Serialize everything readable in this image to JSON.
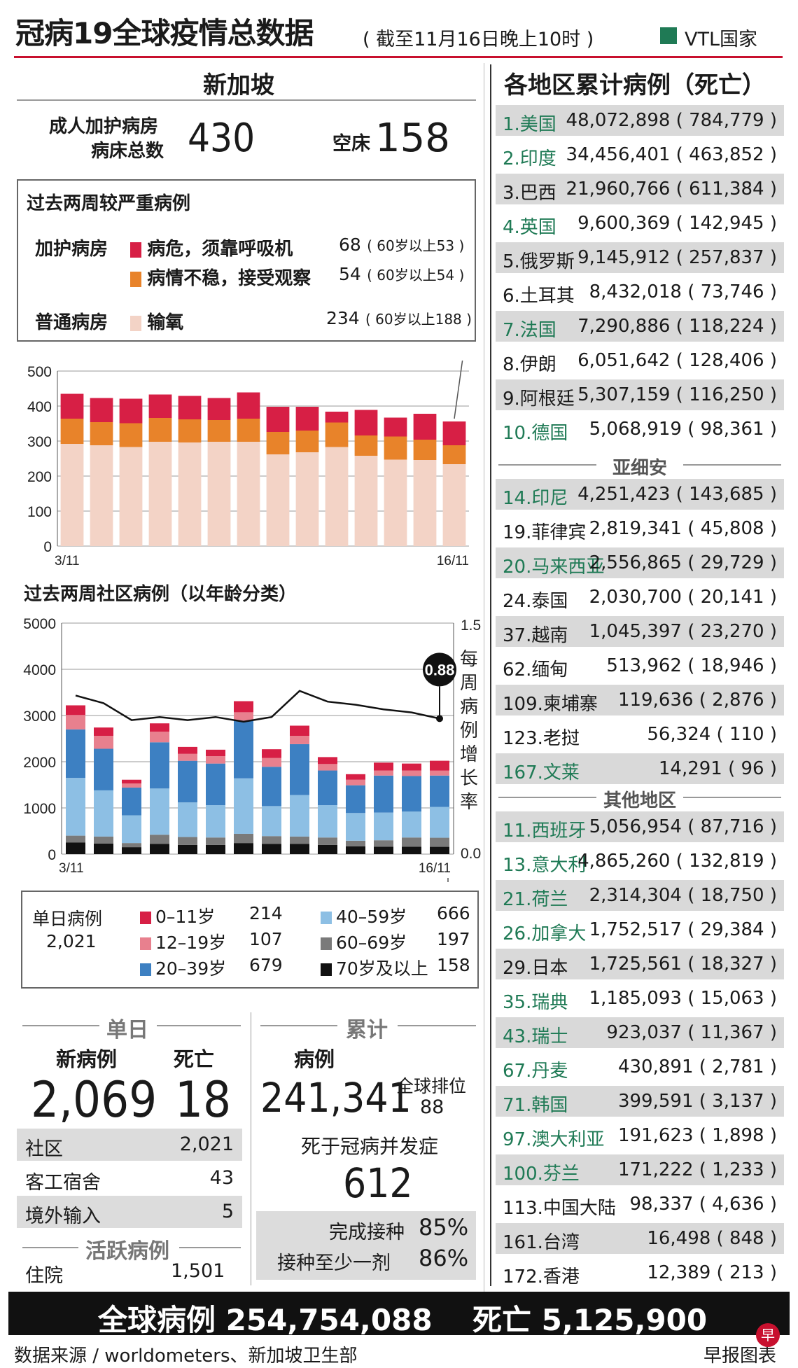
{
  "header": {
    "title": "冠病19全球疫情总数据",
    "subtitle": "( 截至11月16日晚上10时 )",
    "vtl_label": "VTL国家",
    "vtl_color": "#1f7a55"
  },
  "singapore": {
    "title": "新加坡",
    "icu_label_1": "成人加护病房",
    "icu_label_2": "病床总数",
    "icu_total": "430",
    "free_label": "空床",
    "free_beds": "158",
    "severe": {
      "title": "过去两周较严重病例",
      "icu_label": "加护病房",
      "ward_label": "普通病房",
      "rows": [
        {
          "label": "病危，须靠呼吸机",
          "value": "68",
          "note": "( 60岁以上53 )",
          "color": "#d71f45"
        },
        {
          "label": "病情不稳，接受观察",
          "value": "54",
          "note": "( 60岁以上54 )",
          "color": "#e8832a"
        },
        {
          "label": "输氧",
          "value": "234",
          "note": "( 60岁以上188 )",
          "color": "#f3d3c6"
        }
      ]
    },
    "age_chart_title": "过去两周社区病例（以年龄分类）",
    "legend": {
      "daily_label": "单日病例",
      "daily_value": "2,021",
      "items": [
        {
          "label": "0–11岁",
          "value": "214",
          "color": "#d71f45"
        },
        {
          "label": "12–19岁",
          "value": "107",
          "color": "#e8808e"
        },
        {
          "label": "20–39岁",
          "value": "679",
          "color": "#3d80c2"
        },
        {
          "label": "40–59岁",
          "value": "666",
          "color": "#8dbfe4"
        },
        {
          "label": "60–69岁",
          "value": "197",
          "color": "#7a7a7a"
        },
        {
          "label": "70岁及以上",
          "value": "158",
          "color": "#111111"
        }
      ]
    },
    "daily": {
      "header": "单日",
      "new_cases_label": "新病例",
      "deaths_label": "死亡",
      "new_cases": "2,069",
      "deaths": "18",
      "rows": [
        {
          "label": "社区",
          "value": "2,021"
        },
        {
          "label": "客工宿舍",
          "value": "43"
        },
        {
          "label": "境外输入",
          "value": "5"
        }
      ],
      "active_header": "活跃病例",
      "hospital_label": "住院",
      "hospital_value": "1,501"
    },
    "cumulative": {
      "header": "累计",
      "cases_label": "病例",
      "cases": "241,341",
      "rank_label": "全球排位",
      "rank": "88",
      "death_label": "死于冠病并发症",
      "deaths": "612",
      "vacc_full_label": "完成接种",
      "vacc_full": "85%",
      "vacc_one_label": "接种至少一剂",
      "vacc_one": "86%"
    }
  },
  "regions": {
    "title": "各地区累计病例（死亡）",
    "top": [
      {
        "name": "1.美国",
        "value": "48,072,898 ( 784,779 )",
        "vtl": true
      },
      {
        "name": "2.印度",
        "value": "34,456,401 ( 463,852 )",
        "vtl": true
      },
      {
        "name": "3.巴西",
        "value": "21,960,766 ( 611,384 )",
        "vtl": false
      },
      {
        "name": "4.英国",
        "value": "9,600,369 ( 142,945 )",
        "vtl": true
      },
      {
        "name": "5.俄罗斯",
        "value": "9,145,912 ( 257,837 )",
        "vtl": false
      },
      {
        "name": "6.土耳其",
        "value": "8,432,018 ( 73,746 )",
        "vtl": false
      },
      {
        "name": "7.法国",
        "value": "7,290,886 ( 118,224 )",
        "vtl": true
      },
      {
        "name": "8.伊朗",
        "value": "6,051,642 ( 128,406 )",
        "vtl": false
      },
      {
        "name": "9.阿根廷",
        "value": "5,307,159 ( 116,250 )",
        "vtl": false
      },
      {
        "name": "10.德国",
        "value": "5,068,919 ( 98,361 )",
        "vtl": true
      }
    ],
    "asean_header": "亚细安",
    "asean": [
      {
        "name": "14.印尼",
        "value": "4,251,423 ( 143,685 )",
        "vtl": true
      },
      {
        "name": "19.菲律宾",
        "value": "2,819,341 ( 45,808 )",
        "vtl": false
      },
      {
        "name": "20.马来西亚",
        "value": "2,556,865 ( 29,729 )",
        "vtl": true
      },
      {
        "name": "24.泰国",
        "value": "2,030,700 ( 20,141 )",
        "vtl": false
      },
      {
        "name": "37.越南",
        "value": "1,045,397 ( 23,270 )",
        "vtl": false
      },
      {
        "name": "62.缅甸",
        "value": "513,962 ( 18,946 )",
        "vtl": false
      },
      {
        "name": "109.柬埔寨",
        "value": "119,636 ( 2,876 )",
        "vtl": false
      },
      {
        "name": "123.老挝",
        "value": "56,324 ( 110 )",
        "vtl": false
      },
      {
        "name": "167.文莱",
        "value": "14,291 ( 96 )",
        "vtl": true
      }
    ],
    "other_header": "其他地区",
    "other": [
      {
        "name": "11.西班牙",
        "value": "5,056,954 ( 87,716 )",
        "vtl": true
      },
      {
        "name": "13.意大利",
        "value": "4,865,260 ( 132,819 )",
        "vtl": true
      },
      {
        "name": "21.荷兰",
        "value": "2,314,304 ( 18,750 )",
        "vtl": true
      },
      {
        "name": "26.加拿大",
        "value": "1,752,517 ( 29,384 )",
        "vtl": true
      },
      {
        "name": "29.日本",
        "value": "1,725,561 ( 18,327 )",
        "vtl": false
      },
      {
        "name": "35.瑞典",
        "value": "1,185,093 ( 15,063 )",
        "vtl": true
      },
      {
        "name": "43.瑞士",
        "value": "923,037 ( 11,367 )",
        "vtl": true
      },
      {
        "name": "67.丹麦",
        "value": "430,891 ( 2,781 )",
        "vtl": true
      },
      {
        "name": "71.韩国",
        "value": "399,591 ( 3,137 )",
        "vtl": true
      },
      {
        "name": "97.澳大利亚",
        "value": "191,623 ( 1,898 )",
        "vtl": true
      },
      {
        "name": "100.芬兰",
        "value": "171,222 ( 1,233 )",
        "vtl": true
      },
      {
        "name": "113.中国大陆",
        "value": "98,337 ( 4,636 )",
        "vtl": false
      },
      {
        "name": "161.台湾",
        "value": "16,498 ( 848 )",
        "vtl": false
      },
      {
        "name": "172.香港",
        "value": "12,389 ( 213 )",
        "vtl": false
      }
    ]
  },
  "footer": {
    "global_cases": "全球病例 254,754,088",
    "global_deaths": "死亡 5,125,900",
    "source": "数据来源 / worldometers、新加坡卫生部",
    "credit": "早报图表",
    "logo": "早"
  },
  "chart_data": [
    {
      "type": "bar",
      "stacked": true,
      "x_start_label": "3/11",
      "x_end_label": "16/11",
      "ylim": [
        0,
        500
      ],
      "yticks": [
        0,
        100,
        200,
        300,
        400,
        500
      ],
      "grid": true,
      "series": [
        {
          "color": "#f3d3c6",
          "values": [
            292,
            288,
            283,
            298,
            296,
            298,
            298,
            262,
            268,
            283,
            258,
            247,
            246,
            234
          ]
        },
        {
          "color": "#e8832a",
          "values": [
            72,
            66,
            68,
            68,
            66,
            62,
            66,
            64,
            62,
            70,
            58,
            66,
            58,
            54
          ]
        },
        {
          "color": "#d71f45",
          "values": [
            71,
            69,
            70,
            67,
            67,
            63,
            75,
            72,
            68,
            31,
            73,
            54,
            74,
            68
          ]
        }
      ]
    },
    {
      "type": "bar",
      "stacked": true,
      "x_start_label": "3/11",
      "x_end_label": "16/11",
      "ylim": [
        0,
        5000
      ],
      "yticks": [
        0,
        1000,
        2000,
        3000,
        4000,
        5000
      ],
      "y2lim": [
        0,
        1.5
      ],
      "y2ticks": [
        "0.0",
        "1.5"
      ],
      "y2label": "每周病例增长率",
      "callout": "0.88",
      "grid": true,
      "series": [
        {
          "color": "#111111",
          "values": [
            250,
            230,
            150,
            220,
            200,
            200,
            240,
            220,
            220,
            200,
            170,
            160,
            160,
            158
          ]
        },
        {
          "color": "#7a7a7a",
          "values": [
            150,
            150,
            90,
            200,
            170,
            160,
            200,
            170,
            160,
            160,
            120,
            140,
            200,
            197
          ]
        },
        {
          "color": "#8dbfe4",
          "values": [
            1250,
            1000,
            600,
            1000,
            750,
            700,
            1200,
            650,
            900,
            700,
            600,
            600,
            560,
            666
          ]
        },
        {
          "color": "#3d80c2",
          "values": [
            1050,
            900,
            600,
            1000,
            900,
            900,
            1250,
            850,
            1100,
            750,
            600,
            800,
            770,
            679
          ]
        },
        {
          "color": "#e8808e",
          "values": [
            310,
            280,
            90,
            230,
            150,
            160,
            180,
            190,
            180,
            140,
            120,
            110,
            120,
            107
          ]
        },
        {
          "color": "#d71f45",
          "values": [
            210,
            180,
            80,
            180,
            150,
            140,
            240,
            190,
            220,
            150,
            120,
            170,
            150,
            214
          ]
        }
      ],
      "growth_rate": [
        1.03,
        0.98,
        0.87,
        0.89,
        0.87,
        0.89,
        0.86,
        0.89,
        1.06,
        0.99,
        0.97,
        0.94,
        0.92,
        0.88
      ]
    }
  ]
}
